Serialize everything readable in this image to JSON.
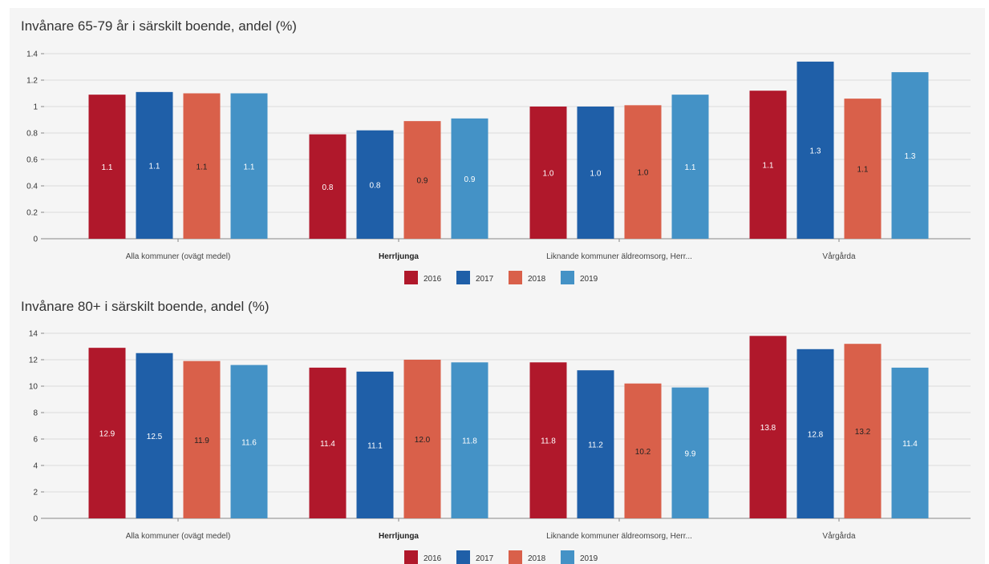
{
  "colors": {
    "2016": "#b0182b",
    "2017": "#1f5fa8",
    "2018": "#d9604a",
    "2019": "#4492c6",
    "grid": "#dcdcdc",
    "axis": "#888888",
    "label_light": "#ffffff",
    "label_dark": "#222222"
  },
  "chart_data": [
    {
      "type": "bar",
      "title": "Invånare 65-79 år i särskilt boende, andel (%)",
      "xlabel": "",
      "ylabel": "",
      "ylim": [
        0,
        1.4
      ],
      "yticks": [
        0,
        0.2,
        0.4,
        0.6,
        0.8,
        1,
        1.2,
        1.4
      ],
      "ytick_labels": [
        "0",
        "0.2",
        "0.4",
        "0.6",
        "0.8",
        "1",
        "1.2",
        "1.4"
      ],
      "grid": true,
      "legend_position": "bottom-center",
      "categories": [
        "Alla kommuner (ovägt medel)",
        "Herrljunga",
        "Liknande kommuner äldreomsorg, Herr...",
        "Vårgårda"
      ],
      "highlight_category": "Herrljunga",
      "series": [
        {
          "name": "2016",
          "values": [
            1.09,
            0.79,
            1.0,
            1.12
          ],
          "labels": [
            "1.1",
            "0.8",
            "1.0",
            "1.1"
          ]
        },
        {
          "name": "2017",
          "values": [
            1.11,
            0.82,
            1.0,
            1.34
          ],
          "labels": [
            "1.1",
            "0.8",
            "1.0",
            "1.3"
          ]
        },
        {
          "name": "2018",
          "values": [
            1.1,
            0.89,
            1.01,
            1.06
          ],
          "labels": [
            "1.1",
            "0.9",
            "1.0",
            "1.1"
          ]
        },
        {
          "name": "2019",
          "values": [
            1.1,
            0.91,
            1.09,
            1.26
          ],
          "labels": [
            "1.1",
            "0.9",
            "1.1",
            "1.3"
          ]
        }
      ]
    },
    {
      "type": "bar",
      "title": "Invånare 80+ i särskilt boende, andel (%)",
      "xlabel": "",
      "ylabel": "",
      "ylim": [
        0,
        14
      ],
      "yticks": [
        0,
        2,
        4,
        6,
        8,
        10,
        12,
        14
      ],
      "ytick_labels": [
        "0",
        "2",
        "4",
        "6",
        "8",
        "10",
        "12",
        "14"
      ],
      "grid": true,
      "legend_position": "bottom-center",
      "categories": [
        "Alla kommuner (ovägt medel)",
        "Herrljunga",
        "Liknande kommuner äldreomsorg, Herr...",
        "Vårgårda"
      ],
      "highlight_category": "Herrljunga",
      "series": [
        {
          "name": "2016",
          "values": [
            12.9,
            11.4,
            11.8,
            13.8
          ],
          "labels": [
            "12.9",
            "11.4",
            "11.8",
            "13.8"
          ]
        },
        {
          "name": "2017",
          "values": [
            12.5,
            11.1,
            11.2,
            12.8
          ],
          "labels": [
            "12.5",
            "11.1",
            "11.2",
            "12.8"
          ]
        },
        {
          "name": "2018",
          "values": [
            11.9,
            12.0,
            10.2,
            13.2
          ],
          "labels": [
            "11.9",
            "12.0",
            "10.2",
            "13.2"
          ]
        },
        {
          "name": "2019",
          "values": [
            11.6,
            11.8,
            9.9,
            11.4
          ],
          "labels": [
            "11.6",
            "11.8",
            "9.9",
            "11.4"
          ]
        }
      ]
    }
  ]
}
